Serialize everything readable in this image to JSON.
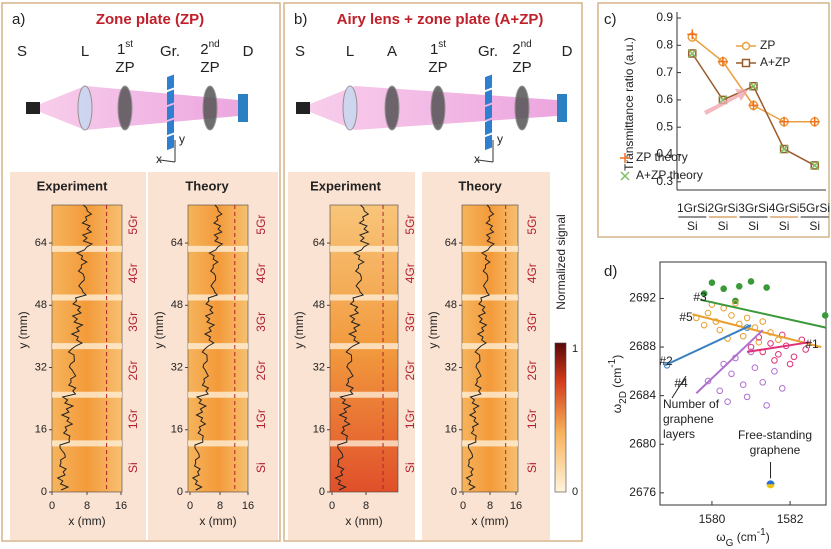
{
  "panels": [
    {
      "label": "a)",
      "title": "Zone plate (ZP)",
      "setup": [
        {
          "text": "S"
        },
        {
          "text": "L"
        },
        {
          "text": "1",
          "sup": "st",
          "line2": "ZP"
        },
        {
          "text": "Gr."
        },
        {
          "text": "2",
          "sup": "nd",
          "line2": "ZP"
        },
        {
          "text": "D"
        }
      ],
      "axis_letters": [
        "x",
        "y"
      ],
      "maps": [
        {
          "title": "Experiment",
          "ylabel": "y (mm)",
          "xlabel": "x (mm)",
          "yticks": [
            "0",
            "16",
            "32",
            "48",
            "64"
          ],
          "xticks": [
            "0",
            "8",
            "16"
          ],
          "layers": [
            "Si",
            "1Gr",
            "2Gr",
            "3Gr",
            "4Gr",
            "5Gr"
          ]
        },
        {
          "title": "Theory",
          "ylabel": "y (mm)",
          "xlabel": "x (mm)",
          "yticks": [
            "0",
            "16",
            "32",
            "48",
            "64"
          ],
          "xticks": [
            "0",
            "8",
            "16"
          ],
          "layers": [
            "Si",
            "1Gr",
            "2Gr",
            "3Gr",
            "4Gr",
            "5Gr"
          ]
        }
      ]
    },
    {
      "label": "b)",
      "title": "Airy lens + zone plate (A+ZP)",
      "setup": [
        {
          "text": "S"
        },
        {
          "text": "L"
        },
        {
          "text": "A"
        },
        {
          "text": "1",
          "sup": "st",
          "line2": "ZP"
        },
        {
          "text": "Gr."
        },
        {
          "text": "2",
          "sup": "nd",
          "line2": "ZP"
        },
        {
          "text": "D"
        }
      ],
      "axis_letters": [
        "x",
        "y"
      ],
      "maps": [
        {
          "title": "Experiment",
          "ylabel": "y (mm)",
          "xlabel": "x (mm)",
          "yticks": [
            "0",
            "16",
            "32",
            "48",
            "64"
          ],
          "xticks": [
            "0",
            "8"
          ],
          "layers": [
            "Si",
            "1Gr",
            "2Gr",
            "3Gr",
            "4Gr",
            "5Gr"
          ]
        },
        {
          "title": "Theory",
          "ylabel": "y (mm)",
          "xlabel": "x (mm)",
          "yticks": [
            "0",
            "16",
            "32",
            "48",
            "64"
          ],
          "xticks": [
            "0",
            "8",
            "16"
          ],
          "layers": [
            "Si",
            "1Gr",
            "2Gr",
            "3Gr",
            "4Gr",
            "5Gr"
          ]
        }
      ]
    }
  ],
  "colorbar": {
    "label": "Normalized signal",
    "max": "1",
    "min": "0"
  },
  "chart_data": [
    {
      "type": "line",
      "label": "c)",
      "ylabel": "Transmittance ratio (a.u.)",
      "categories": [
        "1GrSi",
        "2GrSi",
        "3GrSi",
        "4GrSi",
        "5GrSi"
      ],
      "category_sublabels": [
        "Si",
        "Si",
        "Si",
        "Si",
        "Si"
      ],
      "category_colors": [
        "#222222",
        "#c8782a",
        "#222222",
        "#c8782a",
        "#222222"
      ],
      "ylim": [
        0.27,
        0.9
      ],
      "yticks": [
        0.3,
        0.4,
        0.5,
        0.6,
        0.7,
        0.8,
        0.9
      ],
      "series": [
        {
          "name": "ZP",
          "color": "#e8a040",
          "marker": "circle",
          "values": [
            0.83,
            0.74,
            0.58,
            0.52,
            0.52
          ]
        },
        {
          "name": "A+ZP",
          "color": "#9b5a2a",
          "marker": "square",
          "values": [
            0.77,
            0.6,
            0.65,
            0.42,
            0.36
          ]
        },
        {
          "name": "ZP theory",
          "color": "#f07020",
          "marker": "plus",
          "values": [
            0.84,
            0.74,
            0.58,
            0.52,
            0.52
          ]
        },
        {
          "name": "A+ZP theory",
          "color": "#80c060",
          "marker": "cross",
          "values": [
            0.77,
            0.6,
            0.65,
            0.42,
            0.36
          ]
        }
      ]
    },
    {
      "type": "scatter",
      "label": "d)",
      "xlabel": [
        [
          "ω",
          ""
        ],
        [
          "G",
          "sub"
        ],
        [
          " (cm",
          ""
        ],
        [
          "-1",
          "sup"
        ],
        [
          ")",
          ""
        ]
      ],
      "ylabel": [
        [
          "ω",
          ""
        ],
        [
          "2D",
          "sub"
        ],
        [
          " (cm",
          ""
        ],
        [
          "-1",
          "sup"
        ],
        [
          ")",
          ""
        ]
      ],
      "xlim": [
        1578.67,
        1582.92
      ],
      "xticks": [
        1580,
        1582
      ],
      "ylim": [
        2675,
        2695
      ],
      "yticks": [
        2676,
        2680,
        2684,
        2688,
        2692
      ],
      "series": [
        {
          "color": "#3a9a3a",
          "filled": true,
          "x": [
            1580,
            1580.3,
            1580.7,
            1581,
            1579.8,
            1581.4,
            1580.6,
            1582.9
          ],
          "y": [
            2693.3,
            2692.8,
            2693,
            2693.4,
            2692.4,
            2692.9,
            2691.8,
            2690.6
          ]
        },
        {
          "color": "#e8a030",
          "filled": false,
          "x": [
            1579.6,
            1579.9,
            1580.1,
            1580.3,
            1580.5,
            1580.7,
            1580.9,
            1581.1,
            1581.3,
            1581.5,
            1580.2,
            1580.8,
            1581.7,
            1580,
            1580.6,
            1581.2,
            1579.8,
            1580.4
          ],
          "y": [
            2690.4,
            2690.8,
            2690.1,
            2691.2,
            2690.6,
            2689.9,
            2690.4,
            2689.6,
            2690.1,
            2689.2,
            2689.4,
            2688.9,
            2688.6,
            2691.5,
            2691.6,
            2688.4,
            2689.8,
            2688.7
          ]
        },
        {
          "color": "#e0307a",
          "filled": false,
          "x": [
            1581,
            1581.3,
            1581.5,
            1581.7,
            1581.9,
            1582.1,
            1582.3,
            1581.6,
            1582,
            1581.2,
            1582.4,
            1581.8
          ],
          "y": [
            2688,
            2687.6,
            2688.3,
            2687.4,
            2688.1,
            2687.2,
            2688.6,
            2686.9,
            2686.6,
            2688.8,
            2687.8,
            2689
          ]
        },
        {
          "color": "#b070d0",
          "filled": false,
          "x": [
            1579.9,
            1580.2,
            1580.5,
            1580.8,
            1581.1,
            1580.4,
            1580.9,
            1581.3,
            1581.6,
            1580.6,
            1581.8,
            1580.3,
            1581.4,
            1581
          ],
          "y": [
            2685.2,
            2684.4,
            2685.8,
            2684.9,
            2686.3,
            2683.5,
            2683.9,
            2685.1,
            2686,
            2687.1,
            2684.6,
            2686.6,
            2683.2,
            2687.6
          ]
        },
        {
          "color": "#3a80c0",
          "filled": false,
          "x": [
            1578.85,
            1580.9
          ],
          "y": [
            2686.5,
            2689.6
          ]
        }
      ],
      "fits": [
        {
          "color": "#3a9a3a",
          "x": [
            1579.7,
            1582.92
          ],
          "y": [
            2691.9,
            2689.6
          ]
        },
        {
          "color": "#e8a030",
          "x": [
            1579.5,
            1582.8
          ],
          "y": [
            2690.7,
            2688
          ]
        },
        {
          "color": "#3a80c0",
          "x": [
            1578.8,
            1581
          ],
          "y": [
            2686.5,
            2689.8
          ]
        },
        {
          "color": "#b070d0",
          "x": [
            1579.6,
            1581.3
          ],
          "y": [
            2684.2,
            2689.4
          ]
        },
        {
          "color": "#e0307a",
          "x": [
            1580.9,
            1582.5
          ],
          "y": [
            2687.6,
            2688.4
          ]
        }
      ],
      "reference_point": {
        "x": 1581.5,
        "y": 2676.7
      },
      "annotations": [
        "#1",
        "#2",
        "#3",
        "#4",
        "#5"
      ],
      "note_layers": [
        "Number of",
        "graphene",
        "layers"
      ],
      "note_free": [
        "Free-standing",
        "graphene"
      ]
    }
  ]
}
